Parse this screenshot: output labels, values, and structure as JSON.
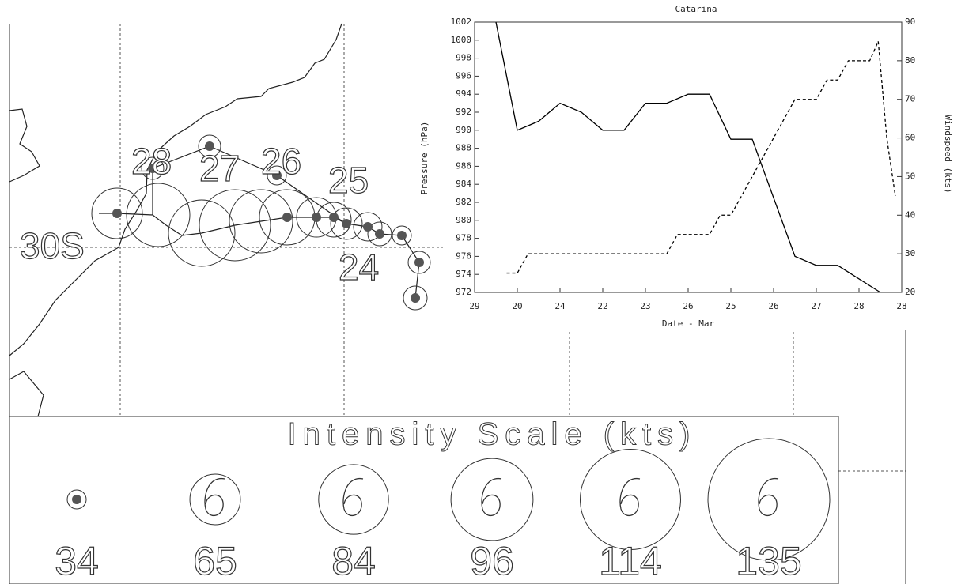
{
  "map": {
    "lat_label": "30S",
    "day_labels": [
      "28",
      "27",
      "26",
      "25",
      "24"
    ]
  },
  "intensity_scale": {
    "title": "Intensity Scale (kts)",
    "values": [
      34,
      65,
      84,
      96,
      114,
      135
    ]
  },
  "chart_data": {
    "type": "line",
    "title": "Catarina",
    "xlabel": "Date - Mar",
    "ylabel": "Pressure (hPa)",
    "y2label": "Windspeed (kts)",
    "xlim": [
      0,
      10
    ],
    "xticks": [
      {
        "value": 0,
        "label": "29"
      },
      {
        "value": 1,
        "label": "20"
      },
      {
        "value": 2,
        "label": "24"
      },
      {
        "value": 3,
        "label": "22"
      },
      {
        "value": 4,
        "label": "23"
      },
      {
        "value": 5,
        "label": "26"
      },
      {
        "value": 6,
        "label": "25"
      },
      {
        "value": 7,
        "label": "26"
      },
      {
        "value": 8,
        "label": "27"
      },
      {
        "value": 9,
        "label": "28"
      },
      {
        "value": 10,
        "label": "28"
      }
    ],
    "ylim": [
      972,
      1002
    ],
    "yticks": [
      972,
      974,
      976,
      978,
      980,
      982,
      984,
      986,
      988,
      990,
      992,
      994,
      996,
      998,
      1000,
      1002
    ],
    "y2lim": [
      20,
      90
    ],
    "y2ticks": [
      20,
      30,
      40,
      50,
      60,
      70,
      80,
      90
    ],
    "series": [
      {
        "color": "#000000",
        "dash": false,
        "x": [
          0.5,
          1,
          1.5,
          2,
          2.5,
          3,
          3.5,
          4,
          4.5,
          5,
          5.5,
          6,
          6.5,
          7.5,
          8,
          8.5,
          9.5
        ],
        "values": [
          1002,
          990,
          991,
          993,
          992,
          990,
          990,
          993,
          993,
          994,
          994,
          989,
          989,
          976,
          975,
          975,
          972
        ]
      },
      {
        "color": "#000000",
        "dash": true,
        "axis": "y2",
        "x": [
          0.75,
          1,
          1.25,
          4.5,
          4.75,
          5.5,
          5.75,
          6,
          7.5,
          8,
          8.25,
          8.5,
          8.75,
          9.25,
          9.45,
          9.65,
          9.85
        ],
        "values": [
          25,
          25,
          30,
          30,
          35,
          35,
          40,
          40,
          70,
          70,
          75,
          75,
          80,
          80,
          85,
          60,
          45
        ]
      }
    ]
  }
}
